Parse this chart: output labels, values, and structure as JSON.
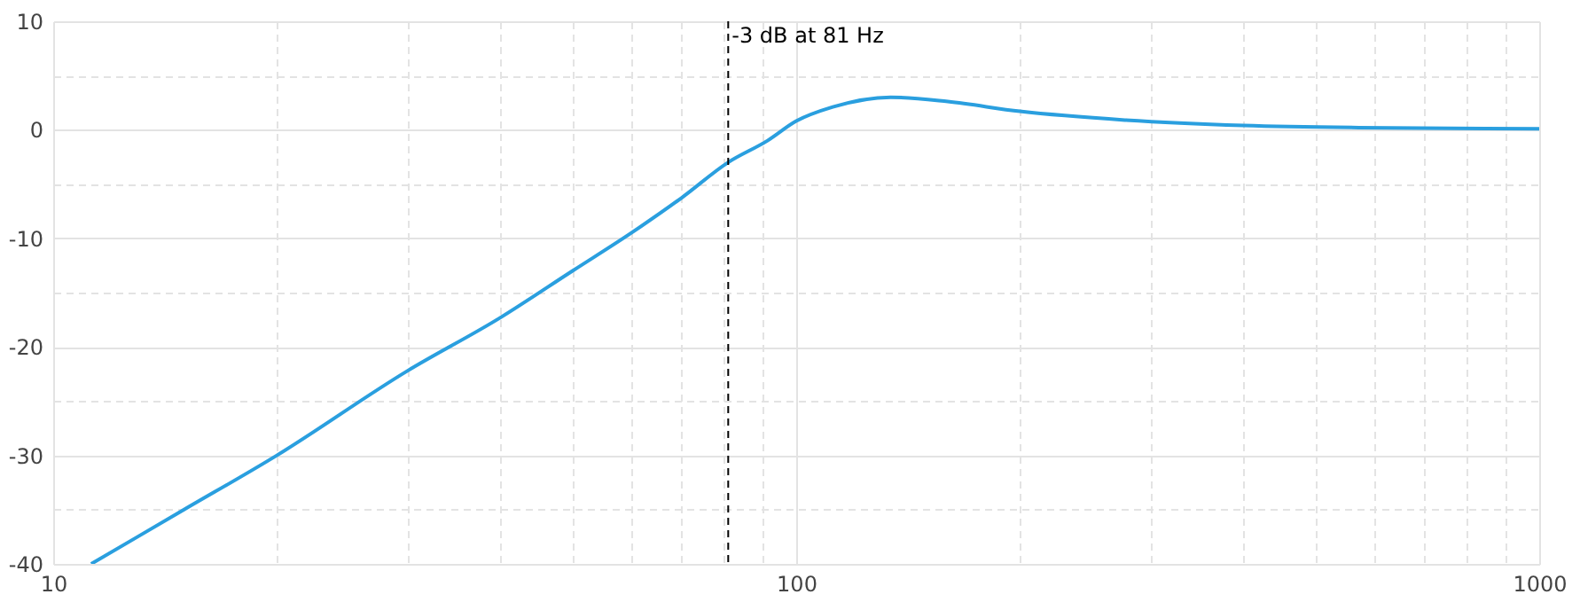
{
  "chart_data": {
    "type": "line",
    "x": [
      11.25,
      15,
      20,
      30,
      40,
      50,
      60,
      70,
      81,
      91.5,
      100,
      112,
      134,
      160,
      200,
      277,
      400,
      572,
      1000
    ],
    "series": [
      {
        "color": "#2a9fdf",
        "values": [
          -40,
          -35,
          -30,
          -22.2,
          -17.3,
          -13,
          -9.5,
          -6.3,
          -3,
          -1,
          0.8,
          2.1,
          3,
          2.6,
          1.7,
          0.9,
          0.4,
          0.2,
          0.1
        ]
      }
    ],
    "log": "x",
    "xlim": [
      10,
      1000
    ],
    "xticks": [
      10,
      {
        "value": 20,
        "label": null
      },
      {
        "value": 30,
        "label": null
      },
      {
        "value": 40,
        "label": null
      },
      {
        "value": 50,
        "label": null
      },
      {
        "value": 60,
        "label": null
      },
      {
        "value": 70,
        "label": null
      },
      {
        "value": 80,
        "label": null
      },
      {
        "value": 90,
        "label": null
      },
      100,
      {
        "value": 200,
        "label": null
      },
      {
        "value": 300,
        "label": null
      },
      {
        "value": 400,
        "label": null
      },
      {
        "value": 500,
        "label": null
      },
      {
        "value": 600,
        "label": null
      },
      {
        "value": 700,
        "label": null
      },
      {
        "value": 800,
        "label": null
      },
      {
        "value": 900,
        "label": null
      },
      1000
    ],
    "ylim": [
      -40,
      10
    ],
    "yticks": [
      -40,
      {
        "value": -35,
        "label": null
      },
      -30,
      {
        "value": -25,
        "label": null
      },
      -20,
      {
        "value": -15,
        "label": null
      },
      -10,
      {
        "value": -5,
        "label": null
      },
      0,
      {
        "value": 5,
        "label": null
      },
      10
    ],
    "grid": true,
    "ref_lines": [
      {
        "axis": "x",
        "value": 81,
        "label": "-3 dB at 81 Hz",
        "color": "#000000",
        "line_style": "dashed"
      }
    ]
  }
}
